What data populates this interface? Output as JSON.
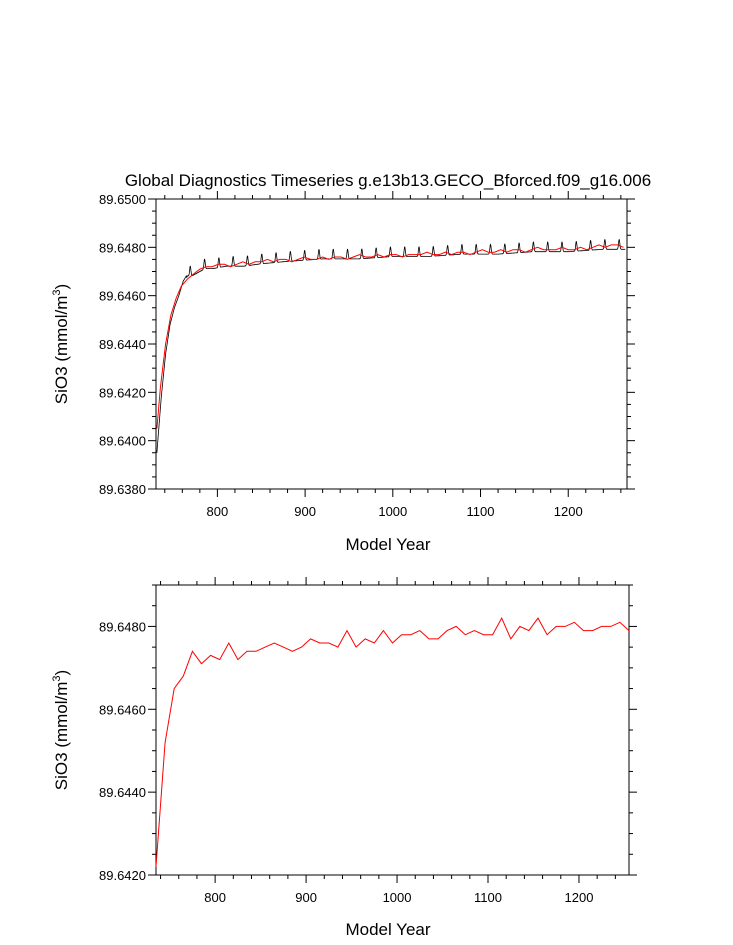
{
  "chart_data": [
    {
      "type": "line",
      "title": "Global Diagnostics Timeseries g.e13b13.GECO_Bforced.f09_g16.006",
      "xlabel": "Model Year",
      "ylabel": "SiO3 (mmol/m",
      "ylabel_sup": "3",
      "ylabel_close": ")",
      "xlim": [
        730,
        1267
      ],
      "ylim": [
        89.638,
        89.65
      ],
      "xticks": [
        800,
        900,
        1000,
        1100,
        1200
      ],
      "yticks": [
        "89.6380",
        "89.6400",
        "89.6420",
        "89.6440",
        "89.6460",
        "89.6480",
        "89.6500"
      ],
      "series": [
        {
          "style": "monthly",
          "color": "#000000",
          "baseline_x": [
            731,
            736,
            741,
            746,
            751,
            756,
            761,
            766,
            771,
            776,
            781,
            786,
            795,
            810,
            830,
            850,
            880,
            920,
            960,
            1000,
            1040,
            1080,
            1120,
            1160,
            1200,
            1240,
            1265
          ],
          "baseline_y": [
            89.6395,
            89.6418,
            89.6436,
            89.6448,
            89.6455,
            89.646,
            89.6466,
            89.6469,
            89.6469,
            89.647,
            89.6471,
            89.6472,
            89.6472,
            89.6473,
            89.6473,
            89.6474,
            89.6475,
            89.6476,
            89.6476,
            89.6477,
            89.6477,
            89.6478,
            89.6478,
            89.6479,
            89.6479,
            89.648,
            89.648
          ],
          "seasonal_amplitude": 0.0004,
          "period_years": 16.3,
          "peak_phase": 0.25
        },
        {
          "style": "annual",
          "color": "#ff0000",
          "x": [
            731,
            735,
            741,
            747,
            753,
            759,
            766,
            773,
            780,
            787,
            794,
            801,
            808,
            815,
            822,
            829,
            836,
            843,
            850,
            857,
            864,
            871,
            878,
            885,
            892,
            899,
            906,
            913,
            920,
            927,
            934,
            941,
            948,
            955,
            962,
            969,
            976,
            983,
            990,
            997,
            1004,
            1011,
            1018,
            1025,
            1032,
            1039,
            1046,
            1053,
            1060,
            1067,
            1074,
            1081,
            1088,
            1095,
            1102,
            1109,
            1116,
            1123,
            1130,
            1137,
            1144,
            1151,
            1158,
            1165,
            1172,
            1179,
            1186,
            1193,
            1200,
            1207,
            1214,
            1221,
            1228,
            1235,
            1242,
            1249,
            1256,
            1263
          ],
          "y": [
            89.6405,
            89.6422,
            89.644,
            89.6452,
            89.6459,
            89.6464,
            89.6467,
            89.6469,
            89.6471,
            89.6472,
            89.6472,
            89.6473,
            89.6473,
            89.6472,
            89.6473,
            89.6474,
            89.6473,
            89.6474,
            89.6474,
            89.6475,
            89.6474,
            89.6475,
            89.6475,
            89.6474,
            89.6475,
            89.6476,
            89.6475,
            89.6475,
            89.6476,
            89.6475,
            89.6476,
            89.6476,
            89.6475,
            89.6476,
            89.6477,
            89.6476,
            89.6476,
            89.6477,
            89.6476,
            89.6477,
            89.6477,
            89.6476,
            89.6477,
            89.6477,
            89.6477,
            89.6478,
            89.6477,
            89.6477,
            89.6478,
            89.6477,
            89.6478,
            89.6478,
            89.6477,
            89.6478,
            89.6479,
            89.6478,
            89.6478,
            89.6479,
            89.6478,
            89.6479,
            89.6479,
            89.6478,
            89.6479,
            89.648,
            89.6479,
            89.6479,
            89.6479,
            89.648,
            89.6479,
            89.6479,
            89.648,
            89.6479,
            89.648,
            89.6481,
            89.648,
            89.6481,
            89.6481,
            89.648
          ]
        }
      ]
    },
    {
      "type": "line",
      "xlabel": "Model Year",
      "ylabel": "SiO3 (mmol/m",
      "ylabel_sup": "3",
      "ylabel_close": ")",
      "xlim": [
        735,
        1255
      ],
      "ylim": [
        89.642,
        89.649
      ],
      "xticks": [
        800,
        900,
        1000,
        1100,
        1200
      ],
      "yticks": [
        "89.6420",
        "89.6440",
        "89.6460",
        "89.6480"
      ],
      "series": [
        {
          "style": "annual",
          "color": "#ff0000",
          "x": [
            735,
            745,
            755,
            765,
            775,
            785,
            795,
            805,
            815,
            825,
            835,
            845,
            855,
            865,
            875,
            885,
            895,
            905,
            915,
            925,
            935,
            945,
            955,
            965,
            975,
            985,
            995,
            1005,
            1015,
            1025,
            1035,
            1045,
            1055,
            1065,
            1075,
            1085,
            1095,
            1105,
            1115,
            1125,
            1135,
            1145,
            1155,
            1165,
            1175,
            1185,
            1195,
            1205,
            1215,
            1225,
            1235,
            1245,
            1255
          ],
          "y": [
            89.6422,
            89.6452,
            89.6465,
            89.6468,
            89.6474,
            89.6471,
            89.6473,
            89.6472,
            89.6476,
            89.6472,
            89.6474,
            89.6474,
            89.6475,
            89.6476,
            89.6475,
            89.6474,
            89.6475,
            89.6477,
            89.6476,
            89.6476,
            89.6475,
            89.6479,
            89.6475,
            89.6477,
            89.6476,
            89.6479,
            89.6476,
            89.6478,
            89.6478,
            89.6479,
            89.6477,
            89.6477,
            89.6479,
            89.648,
            89.6478,
            89.6479,
            89.6478,
            89.6478,
            89.6482,
            89.6477,
            89.648,
            89.6479,
            89.6482,
            89.6478,
            89.648,
            89.648,
            89.6481,
            89.6479,
            89.6479,
            89.648,
            89.648,
            89.6481,
            89.6479
          ]
        }
      ]
    }
  ]
}
